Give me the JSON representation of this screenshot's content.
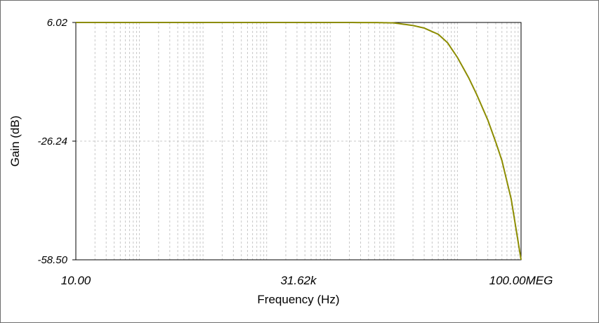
{
  "chart_data": {
    "type": "line",
    "title": "",
    "xlabel": "Frequency (Hz)",
    "ylabel": "Gain (dB)",
    "x_scale": "log",
    "xlim": [
      10,
      100000000
    ],
    "ylim": [
      -58.5,
      6.02
    ],
    "x_tick_labels": [
      "10.00",
      "31.62k",
      "100.00MEG"
    ],
    "x_tick_values": [
      10,
      31620,
      100000000
    ],
    "y_tick_labels": [
      "6.02",
      "-26.24",
      "-58.50"
    ],
    "y_tick_values": [
      6.02,
      -26.24,
      -58.5
    ],
    "grid": true,
    "line_color": "#8c8c00",
    "series": [
      {
        "x": [
          10,
          100,
          1000,
          10000,
          100000,
          500000,
          1000000,
          2000000,
          3000000,
          5000000,
          7000000,
          10000000,
          15000000,
          20000000,
          30000000,
          40000000,
          50000000,
          70000000,
          100000000
        ],
        "y": [
          6.02,
          6.02,
          6.02,
          6.02,
          6.02,
          6.0,
          5.9,
          5.2,
          4.5,
          2.8,
          0.5,
          -3.5,
          -9.0,
          -13.5,
          -20.5,
          -26.5,
          -31.5,
          -42.0,
          -58.5
        ]
      }
    ]
  }
}
